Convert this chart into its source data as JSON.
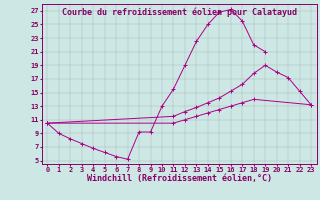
{
  "title": "Courbe du refroidissement éolien pour Calatayud",
  "xlabel": "Windchill (Refroidissement éolien,°C)",
  "bg_color": "#cde8e4",
  "line_color": "#aa0088",
  "grid_color": "#aabbbb",
  "xlim": [
    -0.5,
    23.5
  ],
  "ylim": [
    4.5,
    28
  ],
  "xticks": [
    0,
    1,
    2,
    3,
    4,
    5,
    6,
    7,
    8,
    9,
    10,
    11,
    12,
    13,
    14,
    15,
    16,
    17,
    18,
    19,
    20,
    21,
    22,
    23
  ],
  "yticks": [
    5,
    7,
    9,
    11,
    13,
    15,
    17,
    19,
    21,
    23,
    25,
    27
  ],
  "line1_x": [
    0,
    1,
    2,
    3,
    4,
    5,
    6,
    7,
    8,
    9,
    10,
    11,
    12,
    13,
    14,
    15,
    16,
    17,
    18,
    19
  ],
  "line1_y": [
    10.5,
    9.0,
    8.2,
    7.5,
    6.8,
    6.2,
    5.6,
    5.2,
    9.2,
    9.2,
    13.0,
    15.5,
    19.0,
    22.5,
    25.0,
    26.8,
    27.2,
    25.5,
    22.0,
    21.0
  ],
  "line2_x": [
    0,
    11,
    12,
    13,
    14,
    15,
    16,
    17,
    18,
    19,
    20,
    21,
    22,
    23
  ],
  "line2_y": [
    10.5,
    11.5,
    12.2,
    12.8,
    13.5,
    14.2,
    15.2,
    16.2,
    17.8,
    19.0,
    18.0,
    17.2,
    15.2,
    13.2
  ],
  "line3_x": [
    0,
    11,
    12,
    13,
    14,
    15,
    16,
    17,
    18,
    23
  ],
  "line3_y": [
    10.5,
    10.5,
    11.0,
    11.5,
    12.0,
    12.5,
    13.0,
    13.5,
    14.0,
    13.2
  ],
  "marker_size": 2.5,
  "title_fontsize": 6.0,
  "xlabel_fontsize": 6.0,
  "tick_fontsize": 5.0
}
